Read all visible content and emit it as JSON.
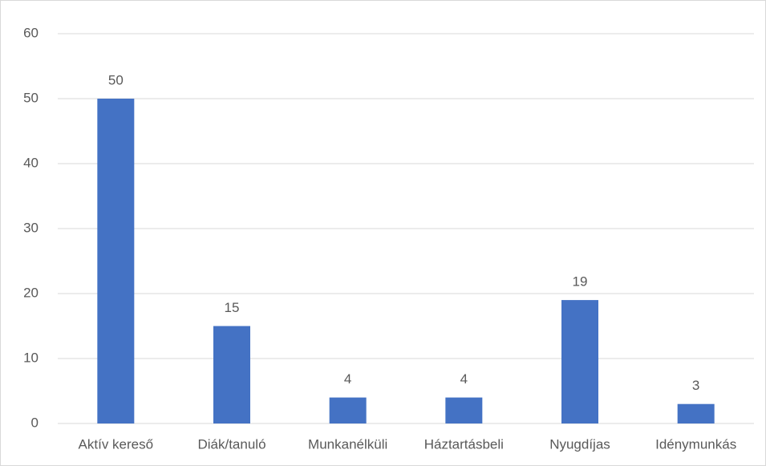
{
  "chart_data": {
    "type": "bar",
    "categories": [
      "Aktív kereső",
      "Diák/tanuló",
      "Munkanélküli",
      "Háztartásbeli",
      "Nyugdíjas",
      "Idénymunkás"
    ],
    "values": [
      50,
      15,
      4,
      4,
      19,
      3
    ],
    "color": "#4472c4",
    "ylim": [
      0,
      60
    ],
    "yticks": [
      0,
      10,
      20,
      30,
      40,
      50,
      60
    ],
    "grid": true,
    "data_labels": true
  }
}
